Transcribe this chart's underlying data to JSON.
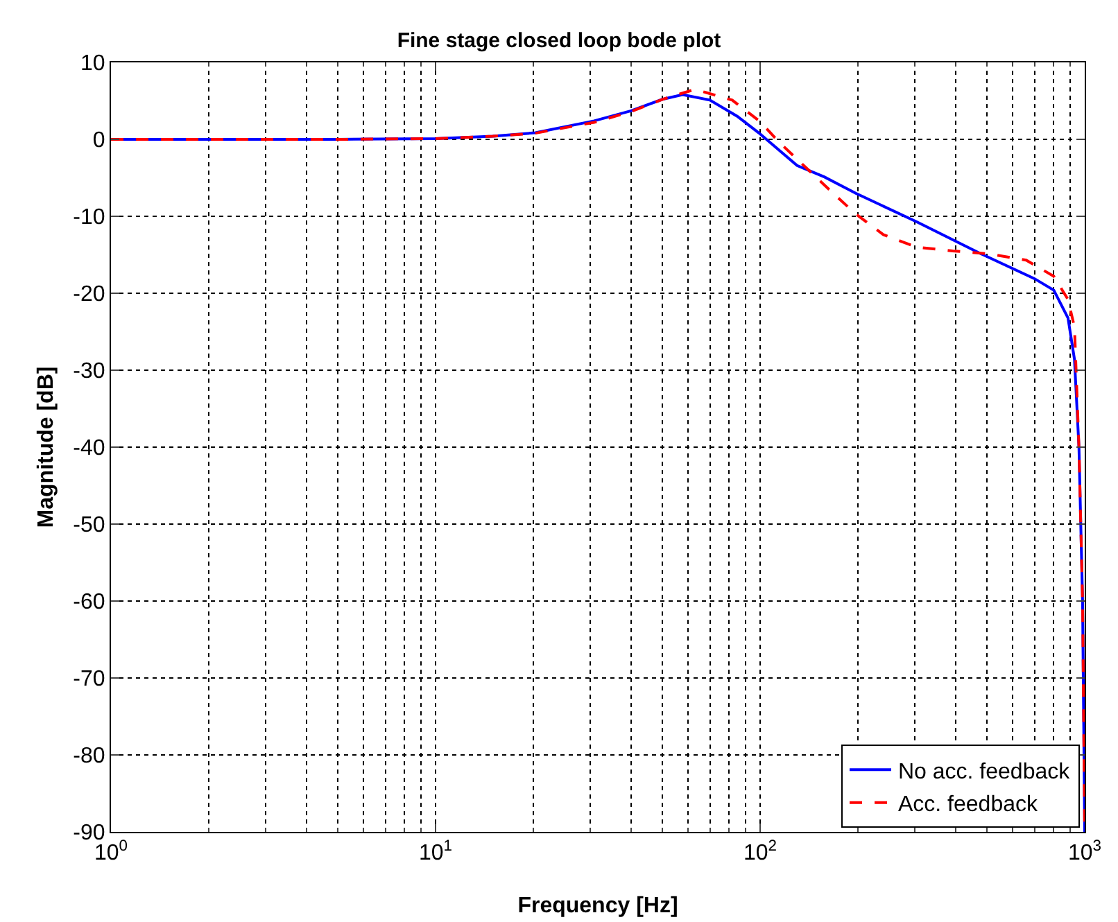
{
  "chart_data": {
    "type": "line",
    "title": "Fine stage closed loop bode plot",
    "xlabel": "Frequency [Hz]",
    "ylabel": "Magnitude [dB]",
    "log": "x",
    "grid": true,
    "legend": "bottom right",
    "xlim": [
      1,
      1000
    ],
    "xticks": [
      {
        "value": 1,
        "label": "10$^{0}$"
      },
      {
        "value": 10,
        "label": "10$^{1}$"
      },
      {
        "value": 100,
        "label": "10$^{2}$"
      },
      {
        "value": 1000,
        "label": "10$^{3}$"
      }
    ],
    "ylim": [
      -90,
      10
    ],
    "yticks": [
      -90,
      -80,
      -70,
      -60,
      -50,
      -40,
      -30,
      -20,
      -10,
      0,
      10
    ],
    "series": [
      {
        "name": "No acc. feedback",
        "color": "#0000ff",
        "line_style": "solid",
        "x": [
          1,
          2,
          5,
          10,
          15,
          20.3,
          30.8,
          40,
          50,
          57.7,
          70,
          85,
          99,
          130,
          158,
          197,
          303,
          475,
          700,
          803,
          888,
          930,
          960,
          985,
          1000
        ],
        "values": [
          0,
          0,
          0,
          0.1,
          0.4,
          0.85,
          2.4,
          3.7,
          5.2,
          5.8,
          5.1,
          3,
          0.85,
          -3.4,
          -4.9,
          -7,
          -10.7,
          -14.8,
          -18.1,
          -19.6,
          -23.2,
          -28.6,
          -40,
          -60,
          -90
        ]
      },
      {
        "name": "Acc. feedback",
        "color": "#ff0000",
        "line_style": "dashed",
        "x": [
          1,
          2,
          5,
          10,
          15,
          20.3,
          30.8,
          40,
          50,
          63,
          82,
          100,
          114,
          162,
          197,
          240,
          303,
          392,
          510,
          660,
          803,
          888,
          930,
          960,
          985,
          1000
        ],
        "values": [
          0,
          0,
          0,
          0.1,
          0.4,
          0.8,
          2.2,
          3.6,
          5.2,
          6.5,
          5.1,
          2.3,
          -0.3,
          -6.4,
          -9.7,
          -12.4,
          -14,
          -14.5,
          -14.9,
          -15.7,
          -17.8,
          -20.8,
          -24.4,
          -40,
          -60,
          -90
        ]
      }
    ]
  }
}
